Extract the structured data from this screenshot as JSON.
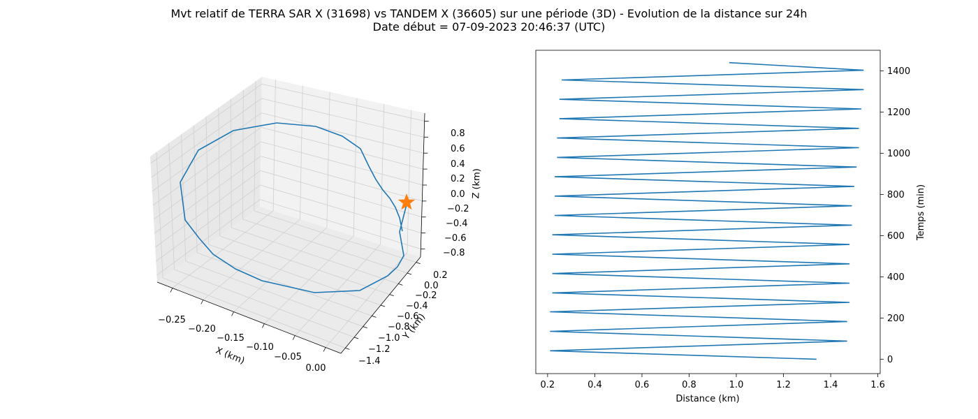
{
  "figure": {
    "title_line1": "Mvt relatif de TERRA SAR X (31698) vs TANDEM X (36605) sur une période (3D) - Evolution de la distance sur 24h",
    "title_line2": "Date début = 07-09-2023 20:46:37 (UTC)"
  },
  "colors": {
    "series": "#1f77b4",
    "marker": "#ff7f0e",
    "pane_light": "#f2f2f2",
    "pane_mid": "#e8e8e8",
    "pane_dark": "#ebebeb",
    "grid": "#cfcfcf"
  },
  "chart_data": [
    {
      "type": "line3d",
      "xlabel": "X (km)",
      "ylabel": "Y (km)",
      "zlabel": "Z (km)",
      "x_ticks": [
        "−0.25",
        "−0.20",
        "−0.15",
        "−0.10",
        "−0.05",
        "0.00"
      ],
      "y_ticks": [
        "0.2",
        "0.0",
        "−0.2",
        "−0.4",
        "−0.6",
        "−0.8",
        "−1.0",
        "−1.2",
        "−1.4"
      ],
      "z_ticks": [
        "0.8",
        "0.6",
        "0.4",
        "0.2",
        "0.0",
        "−0.2",
        "−0.4",
        "−0.6",
        "−0.8"
      ],
      "marker": {
        "shape": "star",
        "label": ""
      },
      "grid": true
    },
    {
      "type": "line",
      "xlabel": "Distance (km)",
      "ylabel": "Temps (min)",
      "x_ticks": [
        "0.2",
        "0.4",
        "0.6",
        "0.8",
        "1.0",
        "1.2",
        "1.4",
        "1.6"
      ],
      "y_ticks": [
        "0",
        "200",
        "400",
        "600",
        "800",
        "1000",
        "1200",
        "1400"
      ],
      "xlim": [
        0.15,
        1.61
      ],
      "ylim": [
        -70,
        1500
      ],
      "series": [
        {
          "points": [
            [
              1.34,
              0
            ],
            [
              0.21,
              41
            ],
            [
              1.47,
              88
            ],
            [
              0.21,
              135
            ],
            [
              1.47,
              183
            ],
            [
              0.21,
              230
            ],
            [
              1.48,
              276
            ],
            [
              0.22,
              322
            ],
            [
              1.48,
              369
            ],
            [
              0.22,
              416
            ],
            [
              1.48,
              463
            ],
            [
              0.22,
              510
            ],
            [
              1.48,
              557
            ],
            [
              0.22,
              604
            ],
            [
              1.49,
              651
            ],
            [
              0.23,
              698
            ],
            [
              1.49,
              745
            ],
            [
              0.23,
              792
            ],
            [
              1.5,
              839
            ],
            [
              0.23,
              886
            ],
            [
              1.51,
              933
            ],
            [
              0.24,
              980
            ],
            [
              1.52,
              1027
            ],
            [
              0.24,
              1074
            ],
            [
              1.52,
              1121
            ],
            [
              0.25,
              1168
            ],
            [
              1.53,
              1215
            ],
            [
              0.25,
              1262
            ],
            [
              1.54,
              1309
            ],
            [
              0.26,
              1356
            ],
            [
              1.54,
              1403
            ],
            [
              0.97,
              1440
            ]
          ]
        }
      ],
      "grid": false
    }
  ]
}
